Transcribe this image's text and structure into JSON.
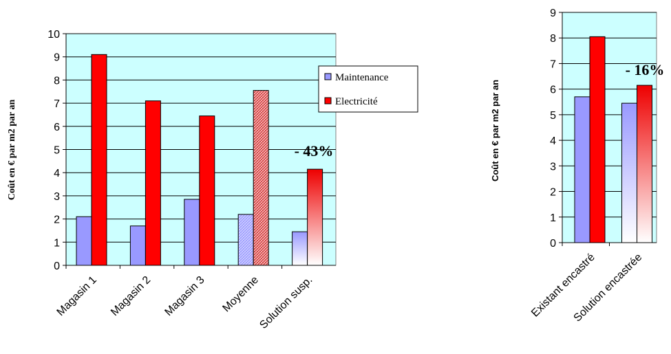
{
  "colors": {
    "plot_bg": "#ccffff",
    "maintenance": "#9999ff",
    "electricite": "#ff0000",
    "dark_red": "#990000",
    "axis": "#000000"
  },
  "chart_data": [
    {
      "type": "bar",
      "title": "",
      "xlabel": "",
      "ylabel": "Coût en € par m2 par an",
      "ylim": [
        0,
        10
      ],
      "yticks": [
        "0",
        "1",
        "2",
        "3",
        "4",
        "5",
        "6",
        "7",
        "8",
        "9",
        "10"
      ],
      "categories": [
        "Magasin 1",
        "Magasin 2",
        "Magasin 3",
        "Moyenne",
        "Solution susp."
      ],
      "series": [
        {
          "name": "Maintenance",
          "values": [
            2.1,
            1.7,
            2.85,
            2.2,
            1.45
          ]
        },
        {
          "name": "Electricité",
          "values": [
            9.1,
            7.1,
            6.45,
            7.55,
            4.15
          ]
        }
      ],
      "fill_styles": [
        "solid",
        "solid",
        "solid",
        "hatched",
        "gradient"
      ],
      "legend_position": "right",
      "annotation": "- 43%",
      "grid": true
    },
    {
      "type": "bar",
      "title": "",
      "xlabel": "",
      "ylabel": "Coût en € par m2 par an",
      "ylim": [
        0,
        9
      ],
      "yticks": [
        "0",
        "1",
        "2",
        "3",
        "4",
        "5",
        "6",
        "7",
        "8",
        "9"
      ],
      "categories": [
        "Existant encastré",
        "Solution encastrée"
      ],
      "series": [
        {
          "name": "Maintenance",
          "values": [
            5.7,
            5.45
          ]
        },
        {
          "name": "Electricité",
          "values": [
            8.05,
            6.15
          ]
        }
      ],
      "fill_styles": [
        "solid",
        "gradient"
      ],
      "annotation": "- 16%",
      "grid": true
    }
  ]
}
